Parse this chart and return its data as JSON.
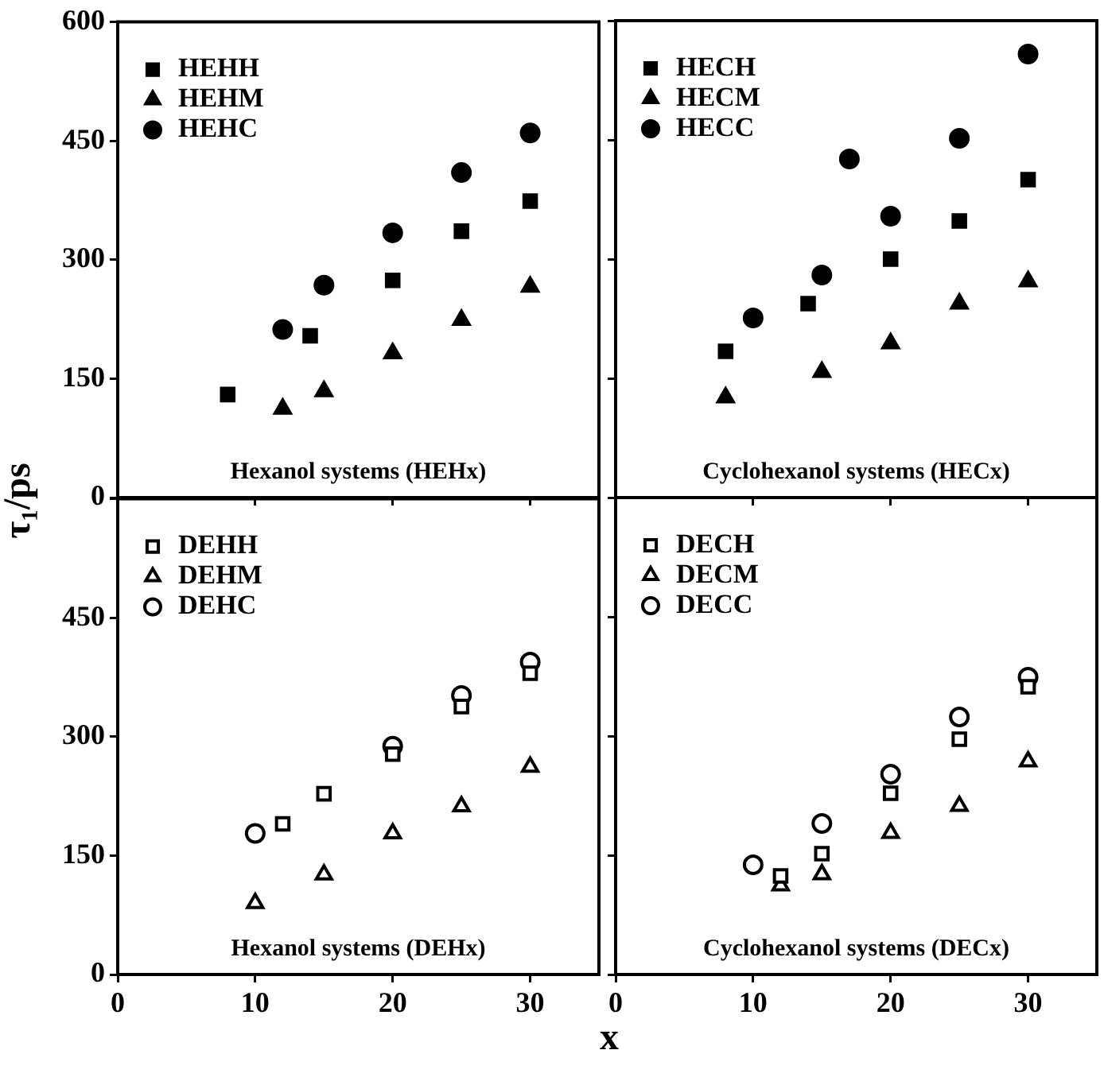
{
  "chart_data": [
    {
      "type": "scatter",
      "ylabel": "τ₁/ps",
      "xlim": [
        0,
        35
      ],
      "ylim": [
        0,
        600
      ],
      "xticks": [
        0,
        10,
        20,
        30
      ],
      "yticks": [
        0,
        150,
        300,
        450,
        600
      ],
      "tick_labels": "y",
      "grid": false,
      "legend": "top left",
      "annotations": [
        "Hexanol systems (HEHx)"
      ],
      "series": [
        {
          "name": "HEHH",
          "color": "#000000",
          "marker": "square",
          "x": [
            8,
            14,
            20,
            25,
            30
          ],
          "values": [
            130,
            204,
            274,
            336,
            374
          ]
        },
        {
          "name": "HEHM",
          "color": "#000000",
          "marker": "triangle",
          "x": [
            12,
            15,
            20,
            25,
            30
          ],
          "values": [
            112,
            134,
            182,
            224,
            266
          ]
        },
        {
          "name": "HEHC",
          "color": "#000000",
          "marker": "circle",
          "x": [
            12,
            15,
            20,
            25,
            30
          ],
          "values": [
            212,
            268,
            334,
            410,
            460
          ]
        }
      ]
    },
    {
      "type": "scatter",
      "xlim": [
        0,
        35
      ],
      "ylim": [
        0,
        600
      ],
      "xticks": [
        0,
        10,
        20,
        30
      ],
      "yticks": [
        0,
        150,
        300,
        450,
        600
      ],
      "tick_labels": false,
      "grid": false,
      "legend": "top left",
      "annotations": [
        "Cyclohexanol systems (HECx)"
      ],
      "series": [
        {
          "name": "HECH",
          "color": "#000000",
          "marker": "square",
          "x": [
            8,
            14,
            20,
            25,
            30
          ],
          "values": [
            184,
            244,
            300,
            348,
            400
          ]
        },
        {
          "name": "HECM",
          "color": "#000000",
          "marker": "triangle",
          "x": [
            8,
            15,
            20,
            25,
            30
          ],
          "values": [
            126,
            158,
            194,
            244,
            272
          ]
        },
        {
          "name": "HECC",
          "color": "#000000",
          "marker": "circle",
          "x": [
            10,
            15,
            17,
            20,
            25,
            30
          ],
          "values": [
            226,
            280,
            426,
            354,
            452,
            558
          ]
        }
      ]
    },
    {
      "type": "scatter",
      "xlabel": "x",
      "xlim": [
        0,
        35
      ],
      "ylim": [
        0,
        600
      ],
      "xticks": [
        0,
        10,
        20,
        30
      ],
      "yticks": [
        0,
        150,
        300,
        450,
        {
          "value": 600,
          "label": null
        }
      ],
      "grid": false,
      "legend": "top left",
      "annotations": [
        "Hexanol systems (DEHx)"
      ],
      "series": [
        {
          "name": "DEHH",
          "color": "#000000",
          "marker": "square",
          "x": [
            12,
            15,
            20,
            25,
            30
          ],
          "values": [
            190,
            228,
            278,
            338,
            380
          ]
        },
        {
          "name": "DEHM",
          "color": "#000000",
          "marker": "triangle",
          "x": [
            10,
            15,
            20,
            25,
            30
          ],
          "values": [
            90,
            126,
            178,
            212,
            262
          ]
        },
        {
          "name": "DEHC",
          "color": "#000000",
          "marker": "circle",
          "x": [
            10,
            15,
            20,
            25,
            30
          ],
          "values": [
            178,
            null,
            288,
            352,
            394
          ]
        }
      ]
    },
    {
      "type": "scatter",
      "xlim": [
        0,
        35
      ],
      "ylim": [
        0,
        600
      ],
      "xticks": [
        0,
        10,
        20,
        30
      ],
      "yticks": [
        0,
        150,
        300,
        450,
        600
      ],
      "tick_labels": "x",
      "grid": false,
      "legend": "top left",
      "annotations": [
        "Cyclohexanol systems (DECx)"
      ],
      "series": [
        {
          "name": "DECH",
          "color": "#000000",
          "marker": "square",
          "x": [
            12,
            15,
            20,
            25,
            30
          ],
          "values": [
            124,
            152,
            228,
            296,
            362
          ]
        },
        {
          "name": "DECM",
          "color": "#000000",
          "marker": "triangle",
          "x": [
            12,
            15,
            20,
            25,
            30
          ],
          "values": [
            112,
            126,
            178,
            212,
            268
          ]
        },
        {
          "name": "DECC",
          "color": "#000000",
          "marker": "circle",
          "x": [
            10,
            15,
            20,
            25,
            30
          ],
          "values": [
            138,
            190,
            252,
            324,
            374
          ]
        }
      ]
    }
  ]
}
